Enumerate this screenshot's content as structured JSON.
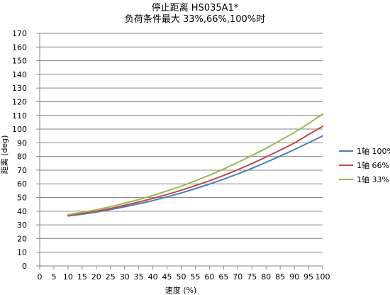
{
  "chart_data": {
    "type": "line",
    "title": "停止距离 HS035A1*",
    "subtitle": "负荷条件最大 33%,66%,100%时",
    "xlabel": "速度 (%)",
    "ylabel": "距离 (deg)",
    "xlim": [
      0,
      100
    ],
    "ylim": [
      0,
      170
    ],
    "x_ticks": [
      0,
      5,
      10,
      15,
      20,
      25,
      30,
      35,
      40,
      45,
      50,
      55,
      60,
      65,
      70,
      75,
      80,
      85,
      90,
      95,
      100
    ],
    "y_ticks": [
      0,
      10,
      20,
      30,
      40,
      50,
      60,
      70,
      80,
      90,
      100,
      110,
      120,
      130,
      140,
      150,
      160,
      170
    ],
    "grid": "horizontal",
    "legend_position": "right",
    "x": [
      10,
      15,
      20,
      25,
      30,
      35,
      40,
      45,
      50,
      55,
      60,
      65,
      70,
      75,
      80,
      85,
      90,
      95,
      100
    ],
    "series": [
      {
        "name": "1轴 100%",
        "color": "#4a7ebb",
        "values": [
          36.5,
          37.8,
          39.3,
          41.2,
          43.2,
          45.4,
          47.7,
          50.5,
          53.3,
          56.5,
          59.8,
          63.4,
          67.2,
          71.3,
          75.7,
          80.3,
          85.0,
          90.0,
          95.0
        ]
      },
      {
        "name": "1轴 66%",
        "color": "#be4b48",
        "values": [
          37.0,
          38.3,
          39.9,
          42.0,
          44.3,
          46.7,
          49.3,
          52.2,
          55.3,
          58.7,
          62.2,
          66.1,
          70.3,
          74.8,
          79.6,
          84.6,
          89.8,
          96.0,
          102.0
        ]
      },
      {
        "name": "1轴 33%",
        "color": "#98b954",
        "values": [
          37.5,
          39.2,
          41.0,
          43.3,
          45.8,
          48.5,
          51.5,
          54.8,
          58.3,
          62.2,
          66.3,
          70.8,
          75.6,
          80.7,
          86.0,
          91.7,
          97.6,
          104.0,
          111.0
        ]
      }
    ]
  },
  "colors": {
    "background": "#ffffff",
    "gridline": "#868686",
    "axis": "#868686"
  }
}
